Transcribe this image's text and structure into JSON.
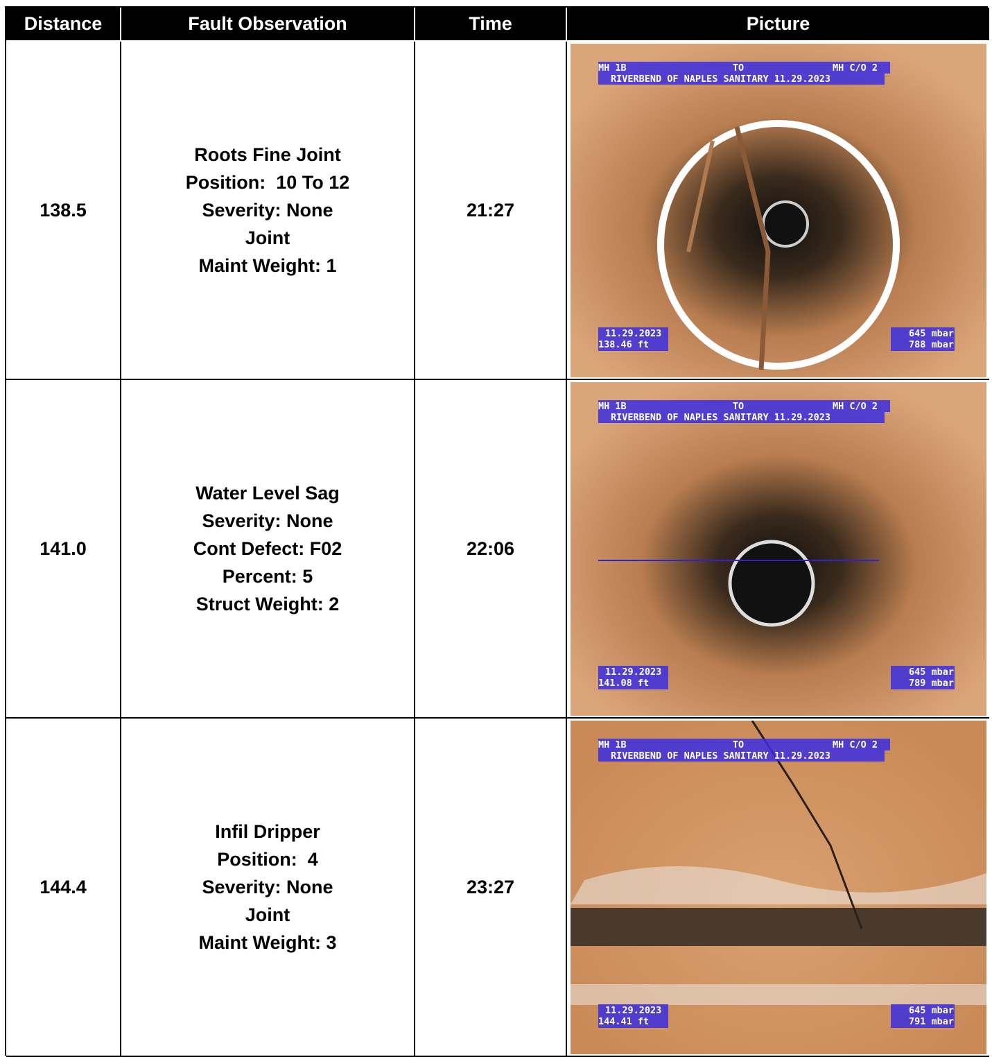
{
  "table": {
    "headers": [
      "Distance",
      "Fault Observation",
      "Time",
      "Picture"
    ],
    "rows": [
      {
        "distance": "138.5",
        "observation": [
          "Roots Fine Joint",
          "Position:  10 To 12",
          "Severity: None",
          "Joint",
          "Maint Weight: 1"
        ],
        "time": "21:27",
        "picture": {
          "from": "MH 1B",
          "to_label": "TO",
          "to": "MH C/O 2",
          "project": "RIVERBEND OF NAPLES SANITARY 11.29.2023",
          "date": "11.29.2023",
          "footage": "138.46 ft",
          "pressure_1": "645 mbar",
          "pressure_2": "788 mbar"
        }
      },
      {
        "distance": "141.0",
        "observation": [
          "Water Level Sag",
          "Severity: None",
          "Cont Defect: F02",
          "Percent: 5",
          "Struct Weight: 2"
        ],
        "time": "22:06",
        "picture": {
          "from": "MH 1B",
          "to_label": "TO",
          "to": "MH C/O 2",
          "project": "RIVERBEND OF NAPLES SANITARY 11.29.2023",
          "date": "11.29.2023",
          "footage": "141.08 ft",
          "pressure_1": "645 mbar",
          "pressure_2": "789 mbar"
        }
      },
      {
        "distance": "144.4",
        "observation": [
          "Infil Dripper",
          "Position:  4",
          "Severity: None",
          "Joint",
          "Maint Weight: 3"
        ],
        "time": "23:27",
        "picture": {
          "from": "MH 1B",
          "to_label": "TO",
          "to": "MH C/O 2",
          "project": "RIVERBEND OF NAPLES SANITARY 11.29.2023",
          "date": "11.29.2023",
          "footage": "144.41 ft",
          "pressure_1": "645 mbar",
          "pressure_2": "791 mbar"
        }
      }
    ]
  }
}
